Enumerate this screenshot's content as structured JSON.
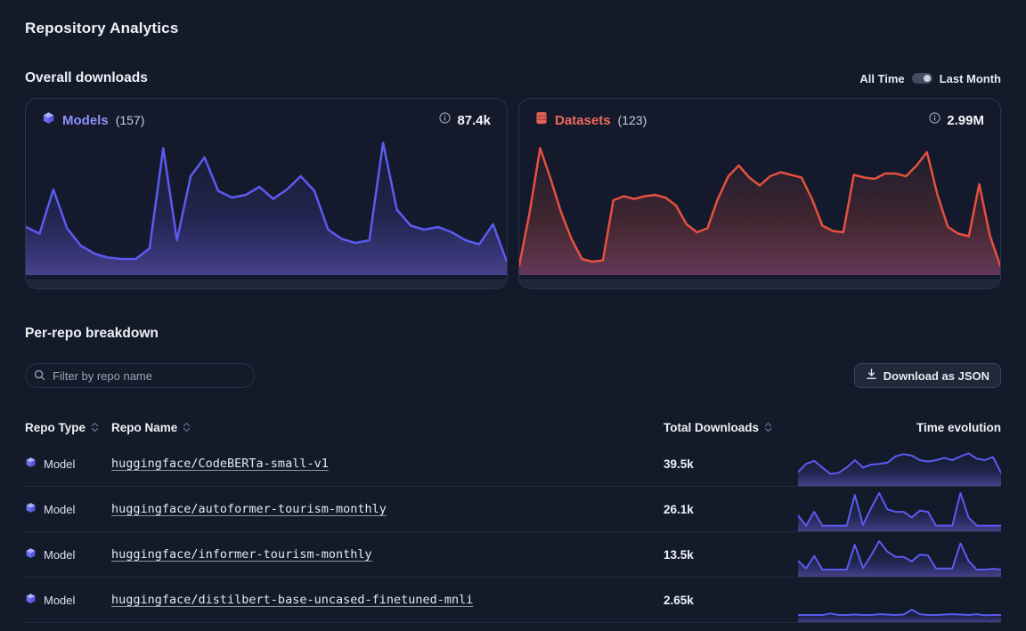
{
  "page": {
    "title": "Repository Analytics"
  },
  "overall": {
    "heading": "Overall downloads",
    "toggle": {
      "left_label": "All Time",
      "right_label": "Last Month",
      "selected": "Last Month"
    },
    "cards": [
      {
        "label": "Models",
        "count": "(157)",
        "total": "87.4k",
        "icon": "cube-icon",
        "accent": "#8b92f8",
        "line_color": "#5b5bf2",
        "points": [
          0.34,
          0.29,
          0.62,
          0.33,
          0.2,
          0.14,
          0.11,
          0.1,
          0.1,
          0.18,
          0.93,
          0.24,
          0.72,
          0.86,
          0.61,
          0.56,
          0.58,
          0.64,
          0.55,
          0.62,
          0.72,
          0.61,
          0.32,
          0.25,
          0.22,
          0.24,
          0.97,
          0.47,
          0.35,
          0.32,
          0.34,
          0.3,
          0.24,
          0.21,
          0.36,
          0.08
        ]
      },
      {
        "label": "Datasets",
        "count": "(123)",
        "total": "2.99M",
        "icon": "database-icon",
        "accent": "#ee6a5c",
        "line_color": "#e5503f",
        "points": [
          0.05,
          0.45,
          0.93,
          0.7,
          0.45,
          0.25,
          0.1,
          0.08,
          0.09,
          0.54,
          0.57,
          0.55,
          0.57,
          0.58,
          0.56,
          0.5,
          0.36,
          0.3,
          0.33,
          0.55,
          0.72,
          0.8,
          0.71,
          0.65,
          0.72,
          0.75,
          0.73,
          0.71,
          0.55,
          0.35,
          0.31,
          0.3,
          0.73,
          0.71,
          0.7,
          0.74,
          0.74,
          0.72,
          0.8,
          0.9,
          0.58,
          0.34,
          0.29,
          0.27,
          0.66,
          0.28,
          0.05
        ]
      }
    ]
  },
  "breakdown": {
    "heading": "Per-repo breakdown",
    "filter_placeholder": "Filter by repo name",
    "filter_value": "",
    "download_button": "Download as JSON",
    "table": {
      "columns": [
        {
          "label": "Repo Type",
          "sortable": true
        },
        {
          "label": "Repo Name",
          "sortable": true
        },
        {
          "label": "Total Downloads",
          "sortable": true
        },
        {
          "label": "Time evolution",
          "sortable": false
        }
      ],
      "rows": [
        {
          "type": "Model",
          "name": "huggingface/CodeBERTa-small-v1",
          "downloads": "39.5k",
          "spark": [
            0.3,
            0.52,
            0.6,
            0.42,
            0.25,
            0.28,
            0.42,
            0.62,
            0.42,
            0.5,
            0.52,
            0.55,
            0.72,
            0.78,
            0.74,
            0.62,
            0.58,
            0.62,
            0.68,
            0.62,
            0.72,
            0.8,
            0.66,
            0.62,
            0.7,
            0.28
          ]
        },
        {
          "type": "Model",
          "name": "huggingface/autoformer-tourism-monthly",
          "downloads": "26.1k",
          "spark": [
            0.35,
            0.08,
            0.45,
            0.08,
            0.08,
            0.08,
            0.08,
            0.9,
            0.1,
            0.55,
            0.95,
            0.52,
            0.45,
            0.45,
            0.3,
            0.48,
            0.45,
            0.08,
            0.08,
            0.08,
            0.95,
            0.3,
            0.08,
            0.08,
            0.08,
            0.08
          ]
        },
        {
          "type": "Model",
          "name": "huggingface/informer-tourism-monthly",
          "downloads": "13.5k",
          "spark": [
            0.35,
            0.15,
            0.48,
            0.12,
            0.12,
            0.12,
            0.12,
            0.78,
            0.16,
            0.5,
            0.88,
            0.6,
            0.46,
            0.46,
            0.34,
            0.52,
            0.5,
            0.15,
            0.15,
            0.15,
            0.82,
            0.35,
            0.12,
            0.12,
            0.14,
            0.12
          ]
        },
        {
          "type": "Model",
          "name": "huggingface/distilbert-base-uncased-finetuned-mnli",
          "downloads": "2.65k",
          "spark": [
            0.12,
            0.12,
            0.12,
            0.12,
            0.16,
            0.12,
            0.12,
            0.13,
            0.12,
            0.12,
            0.14,
            0.13,
            0.12,
            0.13,
            0.26,
            0.14,
            0.12,
            0.12,
            0.13,
            0.14,
            0.13,
            0.12,
            0.14,
            0.11,
            0.12,
            0.12
          ]
        }
      ]
    }
  },
  "colors": {
    "background": "#131a29",
    "card_border": "#2c3550",
    "models_accent": "#8b92f8",
    "models_line": "#5b5bf2",
    "datasets_accent": "#ee6a5c",
    "datasets_line": "#e5503f",
    "row_divider": "#222b3d"
  }
}
